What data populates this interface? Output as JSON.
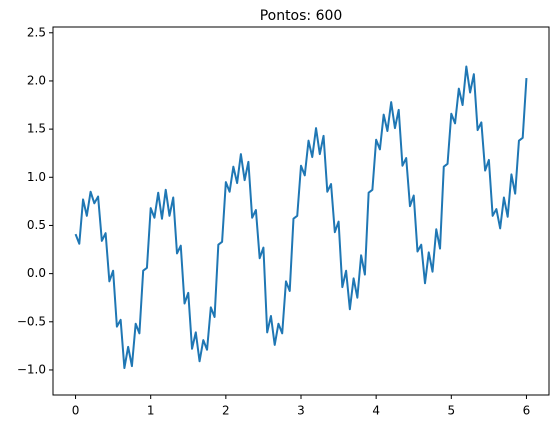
{
  "chart_data": {
    "type": "line",
    "title": "Pontos: 600",
    "x": [
      0,
      0.05,
      0.1,
      0.15,
      0.2,
      0.25,
      0.3,
      0.35,
      0.4,
      0.45,
      0.5,
      0.55,
      0.6,
      0.65,
      0.7,
      0.75,
      0.8,
      0.85,
      0.9,
      0.95,
      1,
      1.05,
      1.1,
      1.15,
      1.2,
      1.25,
      1.3,
      1.35,
      1.4,
      1.45,
      1.5,
      1.55,
      1.6,
      1.65,
      1.7,
      1.75,
      1.8,
      1.85,
      1.9,
      1.95,
      2,
      2.05,
      2.1,
      2.15,
      2.2,
      2.25,
      2.3,
      2.35,
      2.4,
      2.45,
      2.5,
      2.55,
      2.6,
      2.65,
      2.7,
      2.75,
      2.8,
      2.85,
      2.9,
      2.95,
      3,
      3.05,
      3.1,
      3.15,
      3.2,
      3.25,
      3.3,
      3.35,
      3.4,
      3.45,
      3.5,
      3.55,
      3.6,
      3.65,
      3.7,
      3.75,
      3.8,
      3.85,
      3.9,
      3.95,
      4,
      4.05,
      4.1,
      4.15,
      4.2,
      4.25,
      4.3,
      4.35,
      4.4,
      4.45,
      4.5,
      4.55,
      4.6,
      4.65,
      4.7,
      4.75,
      4.8,
      4.85,
      4.9,
      4.95,
      5,
      5.05,
      5.1,
      5.15,
      5.2,
      5.25,
      5.3,
      5.35,
      5.4,
      5.45,
      5.5,
      5.55,
      5.6,
      5.65,
      5.7,
      5.75,
      5.8,
      5.85,
      5.9,
      5.95,
      6
    ],
    "series": [
      {
        "name": "Pontos",
        "color": "#1f77b4",
        "values": [
          0.41,
          0.31,
          0.77,
          0.6,
          0.85,
          0.73,
          0.8,
          0.34,
          0.42,
          -0.08,
          0.03,
          -0.55,
          -0.48,
          -0.98,
          -0.76,
          -0.96,
          -0.52,
          -0.62,
          0.03,
          0.06,
          0.68,
          0.58,
          0.84,
          0.57,
          0.87,
          0.6,
          0.79,
          0.21,
          0.29,
          -0.31,
          -0.2,
          -0.78,
          -0.61,
          -0.91,
          -0.69,
          -0.79,
          -0.35,
          -0.45,
          0.3,
          0.33,
          0.95,
          0.85,
          1.11,
          0.94,
          1.24,
          0.97,
          1.16,
          0.58,
          0.66,
          0.16,
          0.27,
          -0.61,
          -0.44,
          -0.74,
          -0.52,
          -0.62,
          -0.08,
          -0.18,
          0.57,
          0.6,
          1.12,
          1.02,
          1.38,
          1.21,
          1.51,
          1.24,
          1.43,
          0.85,
          0.93,
          0.43,
          0.54,
          -0.14,
          0.03,
          -0.37,
          -0.05,
          -0.25,
          0.19,
          -0.01,
          0.84,
          0.87,
          1.39,
          1.29,
          1.65,
          1.48,
          1.78,
          1.51,
          1.7,
          1.12,
          1.2,
          0.7,
          0.81,
          0.23,
          0.3,
          -0.1,
          0.22,
          0.02,
          0.46,
          0.26,
          1.11,
          1.14,
          1.66,
          1.56,
          1.92,
          1.75,
          2.15,
          1.88,
          2.07,
          1.49,
          1.57,
          1.07,
          1.18,
          0.6,
          0.67,
          0.47,
          0.79,
          0.59,
          1.03,
          0.83,
          1.38,
          1.41,
          2.03
        ]
      }
    ],
    "xlim": [
      -0.3,
      6.3
    ],
    "ylim": [
      -1.26,
      2.56
    ],
    "xticks": [
      0,
      1,
      2,
      3,
      4,
      5,
      6
    ],
    "yticks": [
      {
        "value": -1,
        "label": "−1.0"
      },
      {
        "value": -0.5,
        "label": "−0.5"
      },
      {
        "value": 0,
        "label": "0.0"
      },
      0.5,
      {
        "value": 1,
        "label": "1.0"
      },
      1.5,
      {
        "value": 2,
        "label": "2.0"
      },
      2.5
    ]
  }
}
